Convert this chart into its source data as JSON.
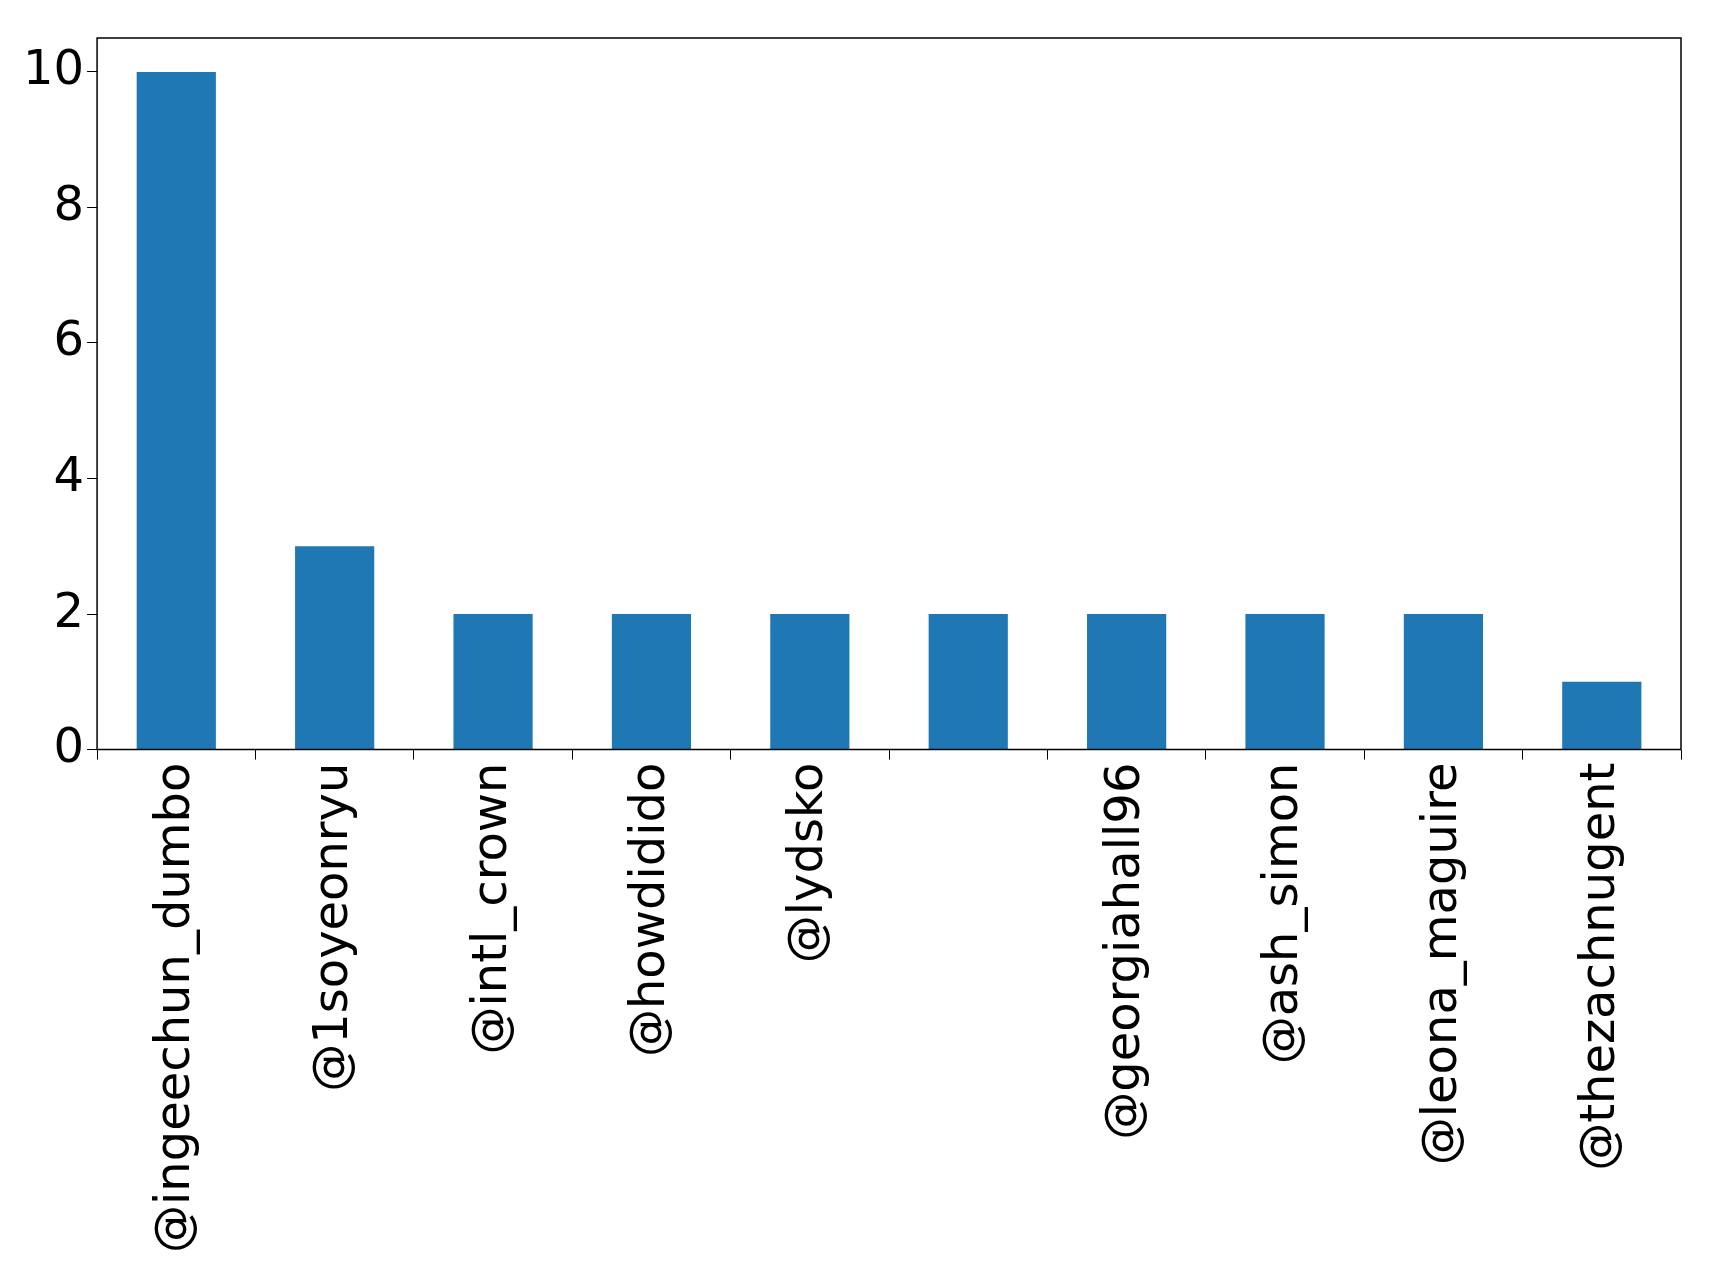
{
  "chart_data": {
    "type": "bar",
    "categories": [
      "@ingeechun_dumbo",
      "@1soyeonryu",
      "@intl_crown",
      "@howdidido",
      "@lydsko",
      null,
      "@georgiahall96",
      "@ash_simon",
      "@leona_maguire",
      "@thezachnugent"
    ],
    "values": [
      10,
      3,
      2,
      2,
      2,
      2,
      2,
      2,
      2,
      1
    ],
    "color": "#1f77b4",
    "ylim": [
      0,
      10.5
    ],
    "yticks": [
      0,
      2,
      4,
      6,
      8,
      10
    ],
    "grid": false,
    "legend": false
  }
}
